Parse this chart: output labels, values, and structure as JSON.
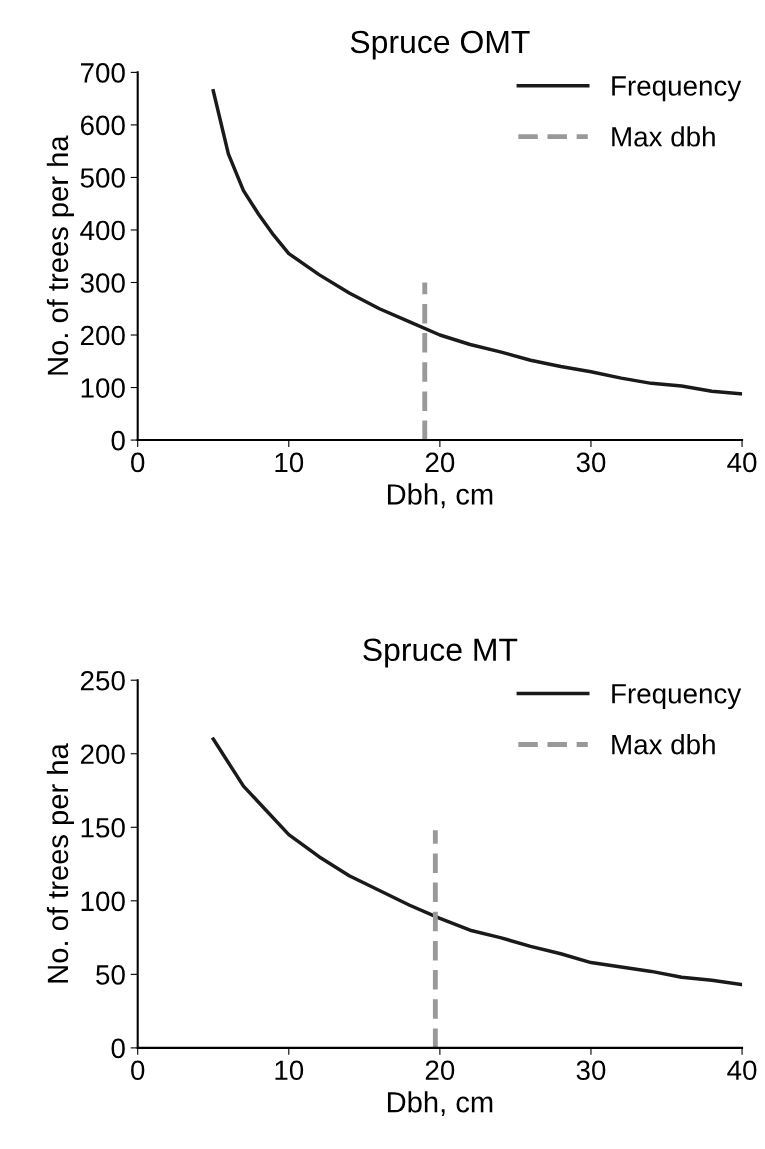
{
  "chart_data": [
    {
      "type": "line",
      "title": "Spruce OMT",
      "xlabel": "Dbh, cm",
      "ylabel": "No. of trees per ha",
      "xlim": [
        0,
        40
      ],
      "xticks": [
        0,
        10,
        20,
        30,
        40
      ],
      "ylim": [
        0,
        700
      ],
      "yticks": [
        0,
        100,
        200,
        300,
        400,
        500,
        600,
        700
      ],
      "grid": false,
      "legend": "top right",
      "series": [
        {
          "name": "Frequency",
          "color": "#1a1a1a",
          "line_style": "solid",
          "x": [
            5,
            6,
            7,
            8,
            9,
            10,
            12,
            14,
            16,
            18,
            20,
            22,
            24,
            26,
            28,
            30,
            32,
            34,
            36,
            38,
            40
          ],
          "values": [
            665,
            545,
            475,
            430,
            390,
            355,
            315,
            280,
            250,
            225,
            200,
            182,
            168,
            152,
            140,
            130,
            118,
            108,
            103,
            93,
            88
          ]
        },
        {
          "name": "Max dbh",
          "color": "#999999",
          "line_style": "dashed",
          "x": [
            19,
            19
          ],
          "values": [
            0,
            300
          ]
        }
      ]
    },
    {
      "type": "line",
      "title": "Spruce MT",
      "xlabel": "Dbh, cm",
      "ylabel": "No. of trees per ha",
      "xlim": [
        0,
        40
      ],
      "xticks": [
        0,
        10,
        20,
        30,
        40
      ],
      "ylim": [
        0,
        250
      ],
      "yticks": [
        0,
        50,
        100,
        150,
        200,
        250
      ],
      "grid": false,
      "legend": "top right",
      "series": [
        {
          "name": "Frequency",
          "color": "#1a1a1a",
          "line_style": "solid",
          "x": [
            5,
            7,
            10,
            12,
            14,
            16,
            18,
            20,
            22,
            24,
            26,
            28,
            30,
            32,
            34,
            36,
            38,
            40
          ],
          "values": [
            210,
            178,
            145,
            130,
            117,
            107,
            97,
            88,
            80,
            75,
            69,
            64,
            58,
            55,
            52,
            48,
            46,
            43
          ]
        },
        {
          "name": "Max dbh",
          "color": "#999999",
          "line_style": "dashed",
          "x": [
            19.7,
            19.7
          ],
          "values": [
            0,
            148
          ]
        }
      ]
    }
  ]
}
